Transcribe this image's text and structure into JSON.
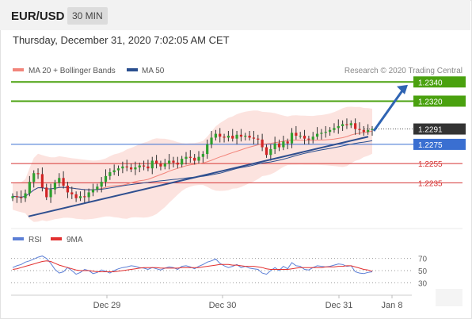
{
  "header": {
    "symbol": "EUR/USD",
    "timeframe": "30 MIN"
  },
  "date_line": "Thursday, December 31, 2020 7:02:05 AM CET",
  "legend": {
    "items": [
      {
        "label": "MA 20 + Bollinger Bands",
        "color": "#f2857b"
      },
      {
        "label": "MA 50",
        "color": "#2a4f8f"
      }
    ],
    "credit": "Research © 2020 Trading Central"
  },
  "rsi_legend": {
    "items": [
      {
        "label": "RSI",
        "color": "#5c7fd6"
      },
      {
        "label": "9MA",
        "color": "#e23030"
      }
    ]
  },
  "colors": {
    "resistance": "#4aa10f",
    "current": "#333333",
    "pivot": "#3a6fd1",
    "support": "#d53434",
    "arrow": "#2f64b3",
    "up_candle": "#2ea02e",
    "down_candle": "#d22424"
  },
  "chart_data": [
    {
      "type": "candlestick",
      "x_tick_labels": [
        "Dec 29",
        "Dec 30",
        "Dec 31",
        "Jan 8"
      ],
      "price_levels": [
        {
          "label": "1.2340",
          "value": 1.234,
          "kind": "resistance"
        },
        {
          "label": "1.2320",
          "value": 1.232,
          "kind": "resistance"
        },
        {
          "label": "1.2291",
          "value": 1.2291,
          "kind": "current"
        },
        {
          "label": "1.2275",
          "value": 1.2275,
          "kind": "pivot"
        },
        {
          "label": "1.2255",
          "value": 1.2255,
          "kind": "support"
        },
        {
          "label": "1.2235",
          "value": 1.2235,
          "kind": "support"
        }
      ],
      "ylim": [
        1.2189,
        1.2346
      ],
      "trendline": {
        "from": 1.22,
        "to": 1.2283
      },
      "forecast_arrow": {
        "from": 1.2289,
        "to": 1.2337
      },
      "close_series": [
        1.2221,
        1.222,
        1.2219,
        1.2224,
        1.2236,
        1.2245,
        1.2244,
        1.223,
        1.222,
        1.2228,
        1.2235,
        1.224,
        1.2232,
        1.2225,
        1.2223,
        1.2219,
        1.2221,
        1.222,
        1.2225,
        1.2228,
        1.2231,
        1.2236,
        1.2242,
        1.2246,
        1.2248,
        1.225,
        1.2252,
        1.2251,
        1.2249,
        1.2251,
        1.2253,
        1.2252,
        1.225,
        1.2258,
        1.2255,
        1.2252,
        1.2255,
        1.2258,
        1.2256,
        1.2254,
        1.226,
        1.2262,
        1.2261,
        1.2258,
        1.2262,
        1.2265,
        1.2275,
        1.2282,
        1.2286,
        1.2283,
        1.2282,
        1.2284,
        1.2281,
        1.2285,
        1.2283,
        1.2284,
        1.2282,
        1.2281,
        1.228,
        1.2272,
        1.2264,
        1.227,
        1.2276,
        1.2272,
        1.2278,
        1.2276,
        1.2287,
        1.2284,
        1.2284,
        1.2281,
        1.228,
        1.2283,
        1.2286,
        1.2287,
        1.2288,
        1.229,
        1.2292,
        1.2294,
        1.2296,
        1.2295,
        1.2297,
        1.2291,
        1.229,
        1.2288,
        1.229,
        1.2291
      ],
      "rsi": {
        "levels": [
          70,
          50,
          30
        ],
        "ylim": [
          20,
          80
        ],
        "rsi_series": [
          55,
          58,
          60,
          64,
          66,
          69,
          72,
          74,
          70,
          62,
          52,
          46,
          48,
          55,
          50,
          44,
          47,
          52,
          50,
          45,
          47,
          51,
          49,
          46,
          50,
          53,
          55,
          56,
          58,
          57,
          55,
          54,
          52,
          55,
          53,
          51,
          54,
          56,
          55,
          52,
          57,
          58,
          56,
          53,
          57,
          60,
          64,
          66,
          69,
          62,
          58,
          55,
          57,
          60,
          55,
          57,
          54,
          53,
          52,
          46,
          44,
          50,
          55,
          50,
          57,
          53,
          63,
          58,
          57,
          52,
          51,
          55,
          58,
          57,
          56,
          57,
          59,
          61,
          60,
          57,
          58,
          48,
          46,
          45,
          47,
          48
        ],
        "ma_series": [
          52,
          53,
          55,
          57,
          59,
          61,
          63,
          65,
          66,
          65,
          62,
          59,
          57,
          55,
          53,
          51,
          50,
          50,
          50,
          49,
          48,
          48,
          48,
          48,
          48,
          49,
          50,
          51,
          52,
          53,
          54,
          55,
          55,
          55,
          55,
          54,
          54,
          54,
          54,
          54,
          55,
          55,
          55,
          55,
          55,
          56,
          57,
          58,
          59,
          60,
          60,
          60,
          59,
          59,
          58,
          57,
          57,
          57,
          56,
          55,
          53,
          52,
          52,
          52,
          52,
          52,
          53,
          54,
          55,
          55,
          55,
          55,
          55,
          55,
          56,
          56,
          56,
          57,
          57,
          58,
          58,
          56,
          54,
          52,
          51,
          49
        ]
      }
    }
  ]
}
